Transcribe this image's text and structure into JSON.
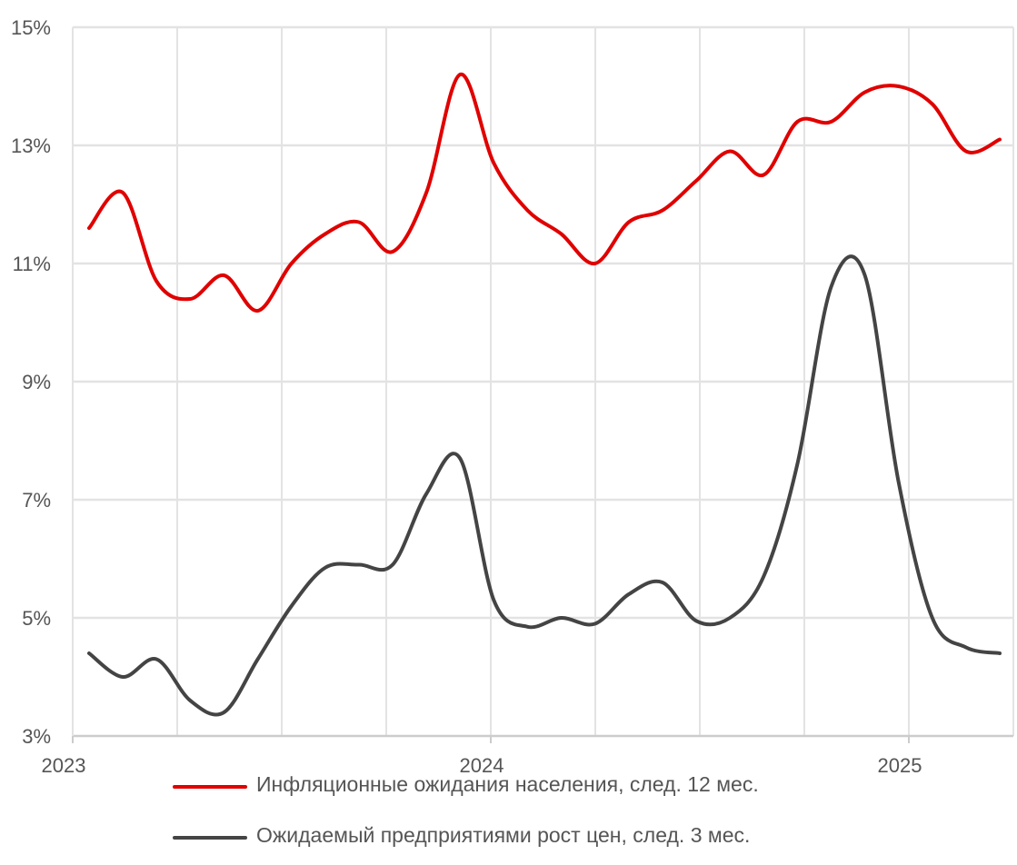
{
  "chart_data": {
    "type": "line",
    "title": "",
    "xlabel": "",
    "ylabel": "",
    "ylim": [
      3,
      15
    ],
    "y_ticks": [
      "3%",
      "5%",
      "7%",
      "9%",
      "11%",
      "13%",
      "15%"
    ],
    "x_ticks": [
      "2023",
      "2024",
      "2025"
    ],
    "xlim": [
      "2023-01",
      "2025-04"
    ],
    "x": [
      "2023-01",
      "2023-02",
      "2023-03",
      "2023-04",
      "2023-05",
      "2023-06",
      "2023-07",
      "2023-08",
      "2023-09",
      "2023-10",
      "2023-11",
      "2023-12",
      "2024-01",
      "2024-02",
      "2024-03",
      "2024-04",
      "2024-05",
      "2024-06",
      "2024-07",
      "2024-08",
      "2024-09",
      "2024-10",
      "2024-11",
      "2024-12",
      "2025-01",
      "2025-02",
      "2025-03",
      "2025-04"
    ],
    "series": [
      {
        "name": "Инфляционные ожидания населения, след. 12 мес.",
        "color": "#e00000",
        "values": [
          11.6,
          12.2,
          10.7,
          10.4,
          10.8,
          10.2,
          11.0,
          11.5,
          11.7,
          11.2,
          12.2,
          14.2,
          12.7,
          11.9,
          11.5,
          11.0,
          11.7,
          11.9,
          12.4,
          12.9,
          12.5,
          13.4,
          13.4,
          13.9,
          14.0,
          13.7,
          12.9,
          13.1
        ]
      },
      {
        "name": "Ожидаемый предприятиями рост цен, след. 3 мес.",
        "color": "#444444",
        "values": [
          4.4,
          4.0,
          4.3,
          3.6,
          3.4,
          4.3,
          5.2,
          5.85,
          5.9,
          5.9,
          7.1,
          7.7,
          5.3,
          4.85,
          5.0,
          4.9,
          5.4,
          5.6,
          4.95,
          5.0,
          5.7,
          7.6,
          10.6,
          10.8,
          7.3,
          5.0,
          4.5,
          4.4
        ]
      }
    ],
    "grid": true,
    "legend_position": "bottom",
    "grid_color": "#e3e3e3",
    "axis_color": "#cccccc"
  }
}
